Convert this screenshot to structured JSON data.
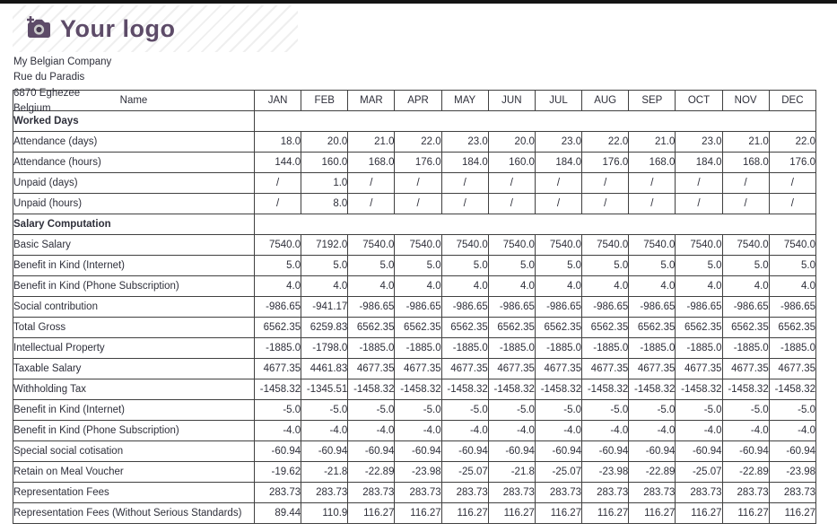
{
  "header": {
    "logo_text": "Your logo",
    "logo_color": "#5d4b68",
    "company_name": "My Belgian Company",
    "street": "Rue du Paradis",
    "city": "6870 Eghezee",
    "country": "Belgium"
  },
  "table": {
    "name_header": "Name",
    "months": [
      "JAN",
      "FEB",
      "MAR",
      "APR",
      "MAY",
      "JUN",
      "JUL",
      "AUG",
      "SEP",
      "OCT",
      "NOV",
      "DEC"
    ],
    "sections": [
      {
        "title": "Worked Days",
        "rows": [
          {
            "label": "Attendance (days)",
            "values": [
              "18.0",
              "20.0",
              "21.0",
              "22.0",
              "23.0",
              "20.0",
              "23.0",
              "22.0",
              "21.0",
              "23.0",
              "21.0",
              "22.0"
            ]
          },
          {
            "label": "Attendance (hours)",
            "values": [
              "144.0",
              "160.0",
              "168.0",
              "176.0",
              "184.0",
              "160.0",
              "184.0",
              "176.0",
              "168.0",
              "184.0",
              "168.0",
              "176.0"
            ]
          },
          {
            "label": "Unpaid (days)",
            "values": [
              "/",
              "1.0",
              "/",
              "/",
              "/",
              "/",
              "/",
              "/",
              "/",
              "/",
              "/",
              "/"
            ]
          },
          {
            "label": "Unpaid (hours)",
            "values": [
              "/",
              "8.0",
              "/",
              "/",
              "/",
              "/",
              "/",
              "/",
              "/",
              "/",
              "/",
              "/"
            ]
          }
        ]
      },
      {
        "title": "Salary Computation",
        "rows": [
          {
            "label": "Basic Salary",
            "values": [
              "7540.0",
              "7192.0",
              "7540.0",
              "7540.0",
              "7540.0",
              "7540.0",
              "7540.0",
              "7540.0",
              "7540.0",
              "7540.0",
              "7540.0",
              "7540.0"
            ]
          },
          {
            "label": "Benefit in Kind (Internet)",
            "values": [
              "5.0",
              "5.0",
              "5.0",
              "5.0",
              "5.0",
              "5.0",
              "5.0",
              "5.0",
              "5.0",
              "5.0",
              "5.0",
              "5.0"
            ]
          },
          {
            "label": "Benefit in Kind (Phone Subscription)",
            "values": [
              "4.0",
              "4.0",
              "4.0",
              "4.0",
              "4.0",
              "4.0",
              "4.0",
              "4.0",
              "4.0",
              "4.0",
              "4.0",
              "4.0"
            ]
          },
          {
            "label": "Social contribution",
            "values": [
              "-986.65",
              "-941.17",
              "-986.65",
              "-986.65",
              "-986.65",
              "-986.65",
              "-986.65",
              "-986.65",
              "-986.65",
              "-986.65",
              "-986.65",
              "-986.65"
            ]
          },
          {
            "label": "Total Gross",
            "values": [
              "6562.35",
              "6259.83",
              "6562.35",
              "6562.35",
              "6562.35",
              "6562.35",
              "6562.35",
              "6562.35",
              "6562.35",
              "6562.35",
              "6562.35",
              "6562.35"
            ]
          },
          {
            "label": "Intellectual Property",
            "values": [
              "-1885.0",
              "-1798.0",
              "-1885.0",
              "-1885.0",
              "-1885.0",
              "-1885.0",
              "-1885.0",
              "-1885.0",
              "-1885.0",
              "-1885.0",
              "-1885.0",
              "-1885.0"
            ]
          },
          {
            "label": "Taxable Salary",
            "values": [
              "4677.35",
              "4461.83",
              "4677.35",
              "4677.35",
              "4677.35",
              "4677.35",
              "4677.35",
              "4677.35",
              "4677.35",
              "4677.35",
              "4677.35",
              "4677.35"
            ]
          },
          {
            "label": "Withholding Tax",
            "values": [
              "-1458.32",
              "-1345.51",
              "-1458.32",
              "-1458.32",
              "-1458.32",
              "-1458.32",
              "-1458.32",
              "-1458.32",
              "-1458.32",
              "-1458.32",
              "-1458.32",
              "-1458.32"
            ]
          },
          {
            "label": "Benefit in Kind (Internet)",
            "values": [
              "-5.0",
              "-5.0",
              "-5.0",
              "-5.0",
              "-5.0",
              "-5.0",
              "-5.0",
              "-5.0",
              "-5.0",
              "-5.0",
              "-5.0",
              "-5.0"
            ]
          },
          {
            "label": "Benefit in Kind (Phone Subscription)",
            "values": [
              "-4.0",
              "-4.0",
              "-4.0",
              "-4.0",
              "-4.0",
              "-4.0",
              "-4.0",
              "-4.0",
              "-4.0",
              "-4.0",
              "-4.0",
              "-4.0"
            ]
          },
          {
            "label": "Special social cotisation",
            "values": [
              "-60.94",
              "-60.94",
              "-60.94",
              "-60.94",
              "-60.94",
              "-60.94",
              "-60.94",
              "-60.94",
              "-60.94",
              "-60.94",
              "-60.94",
              "-60.94"
            ]
          },
          {
            "label": "Retain on Meal Voucher",
            "values": [
              "-19.62",
              "-21.8",
              "-22.89",
              "-23.98",
              "-25.07",
              "-21.8",
              "-25.07",
              "-23.98",
              "-22.89",
              "-25.07",
              "-22.89",
              "-23.98"
            ]
          },
          {
            "label": "Representation Fees",
            "values": [
              "283.73",
              "283.73",
              "283.73",
              "283.73",
              "283.73",
              "283.73",
              "283.73",
              "283.73",
              "283.73",
              "283.73",
              "283.73",
              "283.73"
            ]
          },
          {
            "label": "Representation Fees (Without Serious Standards)",
            "values": [
              "89.44",
              "110.9",
              "116.27",
              "116.27",
              "116.27",
              "116.27",
              "116.27",
              "116.27",
              "116.27",
              "116.27",
              "116.27",
              "116.27"
            ]
          }
        ]
      }
    ]
  }
}
